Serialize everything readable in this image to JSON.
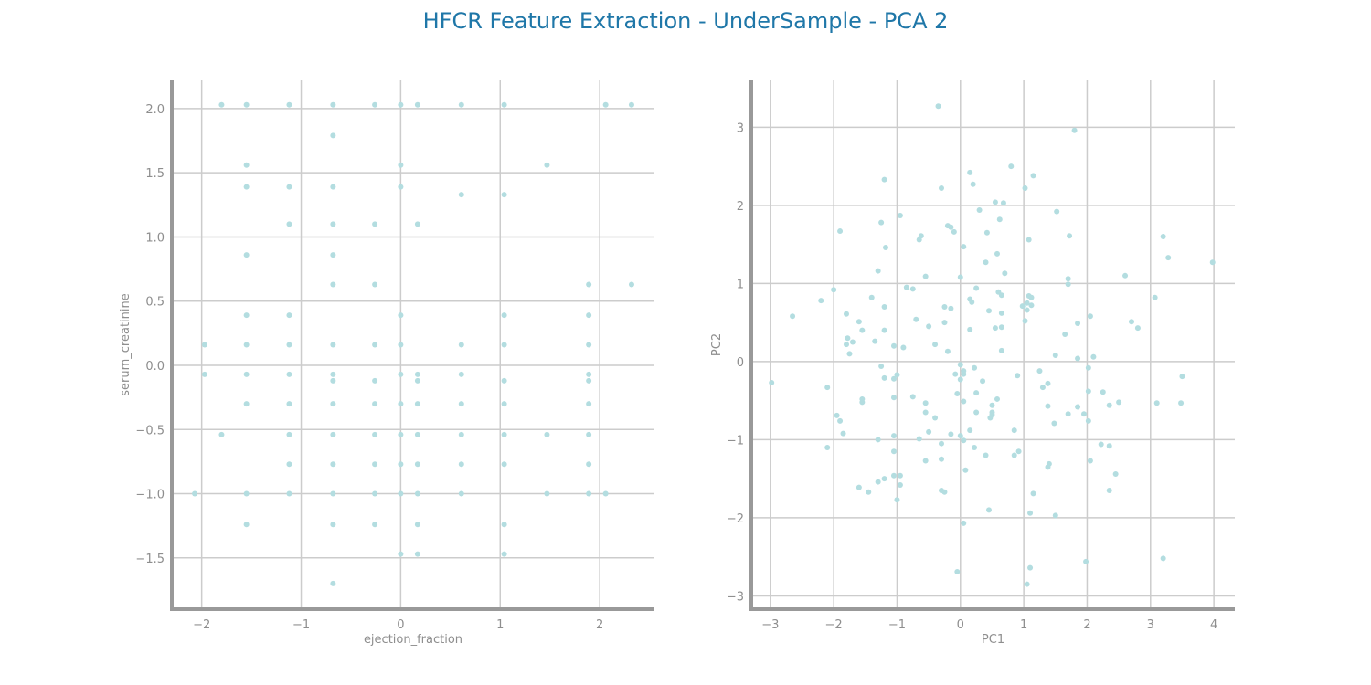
{
  "title": "HFCR Feature Extraction - UnderSample - PCA 2",
  "style": {
    "title_color": "#1f77a8",
    "point_color": "#b3dde0",
    "grid_color": "#cccccc",
    "spine_color": "#999999",
    "text_color": "#8e8e8e"
  },
  "chart_data": [
    {
      "type": "scatter",
      "xlabel": "ejection_fraction",
      "ylabel": "serum_creatinine",
      "xlim": [
        -2.3,
        2.55
      ],
      "ylim": [
        -1.9,
        2.22
      ],
      "xticks": [
        -2,
        -1,
        0,
        1,
        2
      ],
      "xtick_labels": [
        "−2",
        "−1",
        "0",
        "1",
        "2"
      ],
      "yticks": [
        -1.5,
        -1.0,
        -0.5,
        0.0,
        0.5,
        1.0,
        1.5,
        2.0
      ],
      "ytick_labels": [
        "−1.5",
        "−1.0",
        "−0.5",
        "0.0",
        "0.5",
        "1.0",
        "1.5",
        "2.0"
      ],
      "grid": true,
      "points": [
        [
          -1.8,
          2.03
        ],
        [
          -1.55,
          2.03
        ],
        [
          -1.12,
          2.03
        ],
        [
          -0.68,
          2.03
        ],
        [
          -0.26,
          2.03
        ],
        [
          0,
          2.03
        ],
        [
          0.17,
          2.03
        ],
        [
          0.61,
          2.03
        ],
        [
          1.04,
          2.03
        ],
        [
          2.06,
          2.03
        ],
        [
          2.32,
          2.03
        ],
        [
          -0.68,
          1.79
        ],
        [
          -1.55,
          1.56
        ],
        [
          0,
          1.56
        ],
        [
          1.47,
          1.56
        ],
        [
          -1.55,
          1.39
        ],
        [
          -1.12,
          1.39
        ],
        [
          -0.68,
          1.39
        ],
        [
          0,
          1.39
        ],
        [
          0.61,
          1.33
        ],
        [
          1.04,
          1.33
        ],
        [
          -1.12,
          1.1
        ],
        [
          -0.68,
          1.1
        ],
        [
          -0.26,
          1.1
        ],
        [
          0.17,
          1.1
        ],
        [
          -1.55,
          0.86
        ],
        [
          -0.68,
          0.86
        ],
        [
          -0.68,
          0.63
        ],
        [
          -0.26,
          0.63
        ],
        [
          1.89,
          0.63
        ],
        [
          2.32,
          0.63
        ],
        [
          -1.55,
          0.39
        ],
        [
          -1.12,
          0.39
        ],
        [
          0,
          0.39
        ],
        [
          1.04,
          0.39
        ],
        [
          1.89,
          0.39
        ],
        [
          -1.97,
          0.16
        ],
        [
          -1.55,
          0.16
        ],
        [
          -1.12,
          0.16
        ],
        [
          -0.68,
          0.16
        ],
        [
          -0.26,
          0.16
        ],
        [
          0,
          0.16
        ],
        [
          0.61,
          0.16
        ],
        [
          1.04,
          0.16
        ],
        [
          1.89,
          0.16
        ],
        [
          -1.97,
          -0.07
        ],
        [
          -1.55,
          -0.07
        ],
        [
          -1.12,
          -0.07
        ],
        [
          -0.68,
          -0.07
        ],
        [
          0,
          -0.07
        ],
        [
          0.17,
          -0.07
        ],
        [
          0.61,
          -0.07
        ],
        [
          1.89,
          -0.07
        ],
        [
          -0.68,
          -0.12
        ],
        [
          -0.26,
          -0.12
        ],
        [
          0.17,
          -0.12
        ],
        [
          1.04,
          -0.12
        ],
        [
          1.89,
          -0.12
        ],
        [
          -1.55,
          -0.3
        ],
        [
          -1.12,
          -0.3
        ],
        [
          -0.68,
          -0.3
        ],
        [
          -0.26,
          -0.3
        ],
        [
          0,
          -0.3
        ],
        [
          0.17,
          -0.3
        ],
        [
          0.61,
          -0.3
        ],
        [
          1.04,
          -0.3
        ],
        [
          1.89,
          -0.3
        ],
        [
          -1.8,
          -0.54
        ],
        [
          -1.12,
          -0.54
        ],
        [
          -0.68,
          -0.54
        ],
        [
          -0.26,
          -0.54
        ],
        [
          0,
          -0.54
        ],
        [
          0.17,
          -0.54
        ],
        [
          0.61,
          -0.54
        ],
        [
          1.04,
          -0.54
        ],
        [
          1.47,
          -0.54
        ],
        [
          1.89,
          -0.54
        ],
        [
          -1.12,
          -0.77
        ],
        [
          -0.68,
          -0.77
        ],
        [
          -0.26,
          -0.77
        ],
        [
          0,
          -0.77
        ],
        [
          0.17,
          -0.77
        ],
        [
          0.61,
          -0.77
        ],
        [
          1.04,
          -0.77
        ],
        [
          1.89,
          -0.77
        ],
        [
          -2.07,
          -1.0
        ],
        [
          -1.55,
          -1.0
        ],
        [
          -1.12,
          -1.0
        ],
        [
          -0.68,
          -1.0
        ],
        [
          -0.26,
          -1.0
        ],
        [
          0,
          -1.0
        ],
        [
          0.17,
          -1.0
        ],
        [
          0.61,
          -1.0
        ],
        [
          1.47,
          -1.0
        ],
        [
          1.89,
          -1.0
        ],
        [
          2.06,
          -1.0
        ],
        [
          -1.55,
          -1.24
        ],
        [
          -0.68,
          -1.24
        ],
        [
          -0.26,
          -1.24
        ],
        [
          0.17,
          -1.24
        ],
        [
          1.04,
          -1.24
        ],
        [
          0,
          -1.47
        ],
        [
          0.17,
          -1.47
        ],
        [
          1.04,
          -1.47
        ],
        [
          -0.68,
          -1.7
        ]
      ]
    },
    {
      "type": "scatter",
      "xlabel": "PC1",
      "ylabel": "PC2",
      "xlim": [
        -3.3,
        4.33
      ],
      "ylim": [
        -3.17,
        3.6
      ],
      "xticks": [
        -3,
        -2,
        -1,
        0,
        1,
        2,
        3,
        4
      ],
      "xtick_labels": [
        "−3",
        "−2",
        "−1",
        "0",
        "1",
        "2",
        "3",
        "4"
      ],
      "yticks": [
        -3,
        -2,
        -1,
        0,
        1,
        2,
        3
      ],
      "ytick_labels": [
        "−3",
        "−2",
        "−1",
        "0",
        "1",
        "2",
        "3"
      ],
      "grid": true,
      "points": [
        [
          -0.35,
          3.27
        ],
        [
          1.8,
          2.96
        ],
        [
          0.8,
          2.5
        ],
        [
          0.15,
          2.42
        ],
        [
          1.15,
          2.38
        ],
        [
          -1.2,
          2.33
        ],
        [
          0.2,
          2.27
        ],
        [
          -0.3,
          2.22
        ],
        [
          1.02,
          2.22
        ],
        [
          0.55,
          2.04
        ],
        [
          0.68,
          2.03
        ],
        [
          0.3,
          1.94
        ],
        [
          1.52,
          1.92
        ],
        [
          -0.95,
          1.87
        ],
        [
          0.62,
          1.82
        ],
        [
          -1.25,
          1.78
        ],
        [
          -0.2,
          1.74
        ],
        [
          -0.15,
          1.72
        ],
        [
          -1.9,
          1.67
        ],
        [
          -0.1,
          1.66
        ],
        [
          0.42,
          1.65
        ],
        [
          -0.62,
          1.61
        ],
        [
          1.72,
          1.61
        ],
        [
          3.2,
          1.6
        ],
        [
          -0.65,
          1.56
        ],
        [
          1.08,
          1.56
        ],
        [
          -1.18,
          1.46
        ],
        [
          0.05,
          1.47
        ],
        [
          0.58,
          1.38
        ],
        [
          3.28,
          1.33
        ],
        [
          0.4,
          1.27
        ],
        [
          3.98,
          1.27
        ],
        [
          -1.3,
          1.16
        ],
        [
          0.7,
          1.13
        ],
        [
          -0.55,
          1.09
        ],
        [
          2.6,
          1.1
        ],
        [
          0,
          1.08
        ],
        [
          1.7,
          1.06
        ],
        [
          1.7,
          0.99
        ],
        [
          -0.85,
          0.95
        ],
        [
          -0.75,
          0.93
        ],
        [
          -2,
          0.92
        ],
        [
          0.25,
          0.94
        ],
        [
          0.6,
          0.89
        ],
        [
          0.65,
          0.85
        ],
        [
          1.08,
          0.84
        ],
        [
          1.12,
          0.82
        ],
        [
          -1.4,
          0.82
        ],
        [
          3.07,
          0.82
        ],
        [
          0.15,
          0.8
        ],
        [
          -2.2,
          0.78
        ],
        [
          0.18,
          0.76
        ],
        [
          1.05,
          0.75
        ],
        [
          1.12,
          0.72
        ],
        [
          0.98,
          0.71
        ],
        [
          -1.2,
          0.7
        ],
        [
          -0.25,
          0.7
        ],
        [
          -0.15,
          0.68
        ],
        [
          1.05,
          0.66
        ],
        [
          0.45,
          0.65
        ],
        [
          0.65,
          0.62
        ],
        [
          -1.8,
          0.61
        ],
        [
          -2.65,
          0.58
        ],
        [
          2.05,
          0.58
        ],
        [
          -0.7,
          0.54
        ],
        [
          1.02,
          0.52
        ],
        [
          -1.6,
          0.51
        ],
        [
          -0.25,
          0.5
        ],
        [
          1.85,
          0.49
        ],
        [
          2.7,
          0.51
        ],
        [
          0.65,
          0.44
        ],
        [
          0.55,
          0.43
        ],
        [
          2.8,
          0.43
        ],
        [
          -0.5,
          0.45
        ],
        [
          0.15,
          0.41
        ],
        [
          -1.2,
          0.4
        ],
        [
          -1.55,
          0.4
        ],
        [
          1.65,
          0.35
        ],
        [
          -1.78,
          0.3
        ],
        [
          -1.7,
          0.25
        ],
        [
          -1.35,
          0.26
        ],
        [
          -1.8,
          0.22
        ],
        [
          -0.4,
          0.22
        ],
        [
          -1.05,
          0.2
        ],
        [
          -0.9,
          0.18
        ],
        [
          0.65,
          0.14
        ],
        [
          -0.2,
          0.13
        ],
        [
          -1.75,
          0.1
        ],
        [
          1.5,
          0.08
        ],
        [
          2.1,
          0.06
        ],
        [
          1.85,
          0.04
        ],
        [
          0,
          -0.04
        ],
        [
          -1.25,
          -0.06
        ],
        [
          0.22,
          -0.08
        ],
        [
          2.02,
          -0.08
        ],
        [
          0.05,
          -0.12
        ],
        [
          1.25,
          -0.12
        ],
        [
          -0.08,
          -0.16
        ],
        [
          0.05,
          -0.16
        ],
        [
          -1,
          -0.17
        ],
        [
          0.9,
          -0.18
        ],
        [
          -1.2,
          -0.21
        ],
        [
          -1.05,
          -0.22
        ],
        [
          3.5,
          -0.19
        ],
        [
          0,
          -0.23
        ],
        [
          0.35,
          -0.25
        ],
        [
          -2.98,
          -0.27
        ],
        [
          1.38,
          -0.28
        ],
        [
          1.3,
          -0.33
        ],
        [
          -2.1,
          -0.33
        ],
        [
          2.02,
          -0.38
        ],
        [
          2.25,
          -0.39
        ],
        [
          0.25,
          -0.4
        ],
        [
          -0.05,
          -0.41
        ],
        [
          -0.75,
          -0.45
        ],
        [
          -1.05,
          -0.46
        ],
        [
          0.58,
          -0.48
        ],
        [
          -1.55,
          -0.48
        ],
        [
          0.05,
          -0.51
        ],
        [
          -1.55,
          -0.52
        ],
        [
          -0.55,
          -0.53
        ],
        [
          2.5,
          -0.52
        ],
        [
          3.1,
          -0.53
        ],
        [
          3.48,
          -0.53
        ],
        [
          0.5,
          -0.56
        ],
        [
          2.35,
          -0.56
        ],
        [
          1.85,
          -0.58
        ],
        [
          1.38,
          -0.57
        ],
        [
          0.5,
          -0.65
        ],
        [
          0.25,
          -0.65
        ],
        [
          -0.55,
          -0.65
        ],
        [
          0.5,
          -0.68
        ],
        [
          1.7,
          -0.67
        ],
        [
          1.95,
          -0.67
        ],
        [
          -1.95,
          -0.69
        ],
        [
          -1.9,
          -0.76
        ],
        [
          2.02,
          -0.76
        ],
        [
          -0.4,
          -0.72
        ],
        [
          0.47,
          -0.72
        ],
        [
          1.48,
          -0.79
        ],
        [
          0.85,
          -0.88
        ],
        [
          0.15,
          -0.88
        ],
        [
          -0.5,
          -0.9
        ],
        [
          -1.85,
          -0.92
        ],
        [
          -0.15,
          -0.93
        ],
        [
          -1.05,
          -0.95
        ],
        [
          0,
          -0.95
        ],
        [
          -1.3,
          -1
        ],
        [
          0.05,
          -1.01
        ],
        [
          -0.65,
          -0.99
        ],
        [
          2.22,
          -1.06
        ],
        [
          -0.3,
          -1.05
        ],
        [
          2.35,
          -1.08
        ],
        [
          -2.1,
          -1.1
        ],
        [
          0.22,
          -1.1
        ],
        [
          0.92,
          -1.15
        ],
        [
          -1.05,
          -1.15
        ],
        [
          0.85,
          -1.2
        ],
        [
          0.4,
          -1.2
        ],
        [
          -0.3,
          -1.25
        ],
        [
          -0.55,
          -1.27
        ],
        [
          2.05,
          -1.27
        ],
        [
          1.4,
          -1.31
        ],
        [
          1.38,
          -1.35
        ],
        [
          0.08,
          -1.39
        ],
        [
          2.45,
          -1.44
        ],
        [
          -0.95,
          -1.46
        ],
        [
          -1.05,
          -1.46
        ],
        [
          -1.2,
          -1.5
        ],
        [
          -1.3,
          -1.54
        ],
        [
          -0.95,
          -1.58
        ],
        [
          -1.6,
          -1.61
        ],
        [
          -0.3,
          -1.65
        ],
        [
          -1.45,
          -1.67
        ],
        [
          -0.25,
          -1.67
        ],
        [
          2.35,
          -1.65
        ],
        [
          1.15,
          -1.69
        ],
        [
          -1,
          -1.77
        ],
        [
          0.45,
          -1.9
        ],
        [
          1.1,
          -1.94
        ],
        [
          1.5,
          -1.97
        ],
        [
          0.05,
          -2.07
        ],
        [
          1.98,
          -2.56
        ],
        [
          3.2,
          -2.52
        ],
        [
          1.1,
          -2.64
        ],
        [
          -0.05,
          -2.69
        ],
        [
          1.05,
          -2.85
        ]
      ]
    }
  ]
}
